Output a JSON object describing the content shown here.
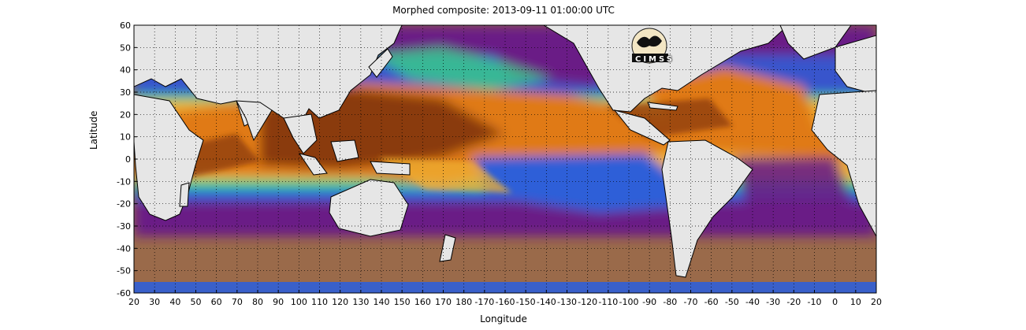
{
  "title": "Morphed composite: 2013-09-11 01:00:00 UTC",
  "xlabel": "Longitude",
  "ylabel": "Latitude",
  "xticks": [
    "20",
    "30",
    "40",
    "50",
    "60",
    "70",
    "80",
    "90",
    "100",
    "110",
    "120",
    "130",
    "140",
    "150",
    "160",
    "170",
    "180",
    "-170",
    "-160",
    "-150",
    "-140",
    "-130",
    "-120",
    "-110",
    "-100",
    "-90",
    "-80",
    "-70",
    "-60",
    "-50",
    "-40",
    "-30",
    "-20",
    "-10",
    "0",
    "10",
    "20"
  ],
  "yticks": [
    "60",
    "50",
    "40",
    "30",
    "20",
    "10",
    "0",
    "-10",
    "-20",
    "-30",
    "-40",
    "-50",
    "-60"
  ],
  "logo": {
    "text": "CIMSS"
  },
  "colors": {
    "land": "#e6e6e6",
    "border": "#000000",
    "very_moist": "#8a3a08",
    "moist": "#e07a18",
    "medium": "#f0b030",
    "transition": "#38d088",
    "dry": "#2f5fd8",
    "very_dry": "#6a1f86",
    "southern_dry": "#9a6a4a"
  }
}
